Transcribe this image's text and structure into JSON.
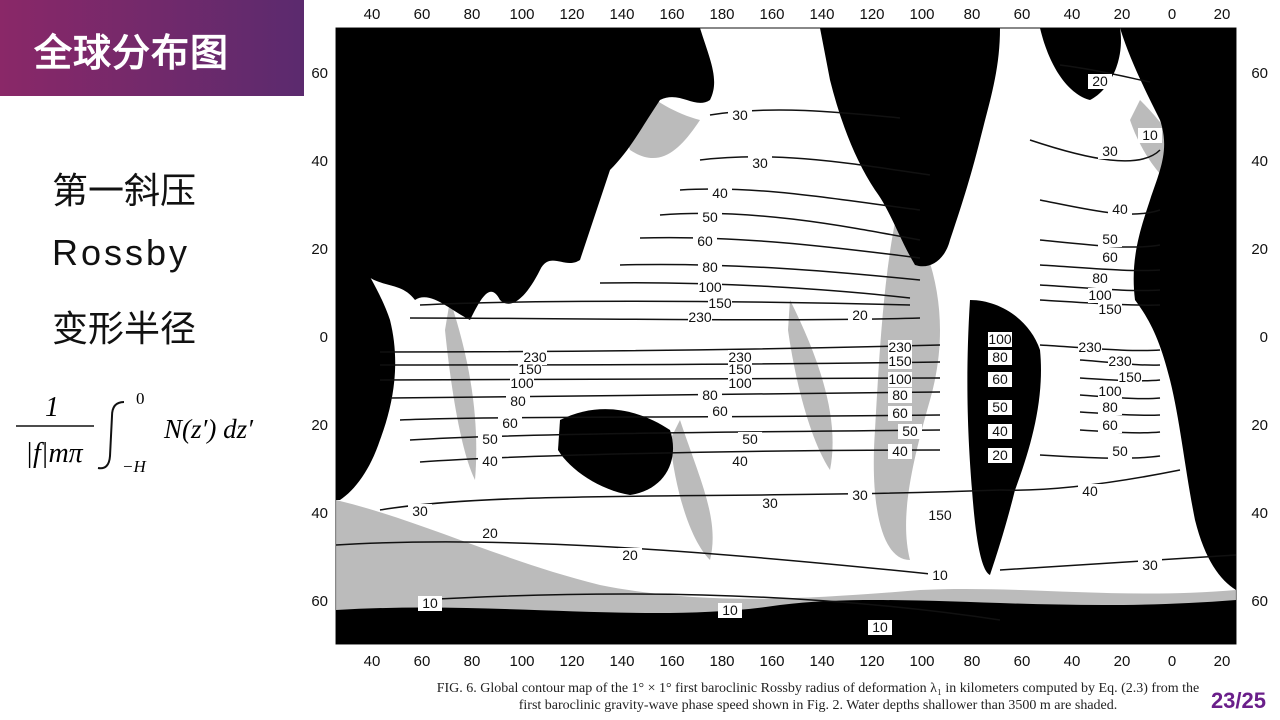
{
  "slide": {
    "title": "全球分布图",
    "page": "23/25"
  },
  "bullets": {
    "line1": "第一斜压",
    "line2": "Rossby",
    "line3": "变形半径"
  },
  "formula": {
    "numerator": "1",
    "denominator": "|f|mπ",
    "upper_limit": "0",
    "lower_limit": "−H",
    "integrand": "N(z′) dz′"
  },
  "map": {
    "top_lon_labels": [
      "40",
      "60",
      "80",
      "100",
      "120",
      "140",
      "160",
      "180",
      "160",
      "140",
      "120",
      "100",
      "80",
      "60",
      "40",
      "20",
      "0",
      "20"
    ],
    "bottom_lon_labels": [
      "40",
      "60",
      "80",
      "100",
      "120",
      "140",
      "160",
      "180",
      "160",
      "140",
      "120",
      "100",
      "80",
      "60",
      "40",
      "20",
      "0",
      "20"
    ],
    "left_lat_labels": [
      "60",
      "40",
      "20",
      "0",
      "20",
      "40",
      "60"
    ],
    "right_lat_labels": [
      "60",
      "40",
      "20",
      "0",
      "20",
      "40",
      "60"
    ],
    "contour_labels": [
      "20",
      "30",
      "40",
      "50",
      "60",
      "80",
      "100",
      "150",
      "230",
      "230",
      "150",
      "100",
      "80",
      "60",
      "50",
      "40",
      "30",
      "20",
      "10",
      "10",
      "10",
      "230",
      "150",
      "100",
      "80",
      "60",
      "50",
      "40",
      "30",
      "20",
      "10",
      "20",
      "30",
      "40",
      "50",
      "60",
      "80",
      "100",
      "150",
      "230",
      "230",
      "150",
      "100",
      "80",
      "60",
      "50",
      "40",
      "30",
      "10",
      "20",
      "230",
      "150",
      "100",
      "80",
      "60",
      "50",
      "40",
      "30",
      "20",
      "40",
      "50",
      "60",
      "80",
      "100",
      "150",
      "30"
    ]
  },
  "caption": {
    "line1": "FIG. 6. Global contour map of the 1° × 1° first baroclinic Rossby radius of deformation λ₁ in kilometers computed by Eq. (2.3) from the",
    "line2": "first baroclinic gravity-wave phase speed shown in Fig. 2. Water depths shallower than 3500 m are shaded."
  },
  "colors": {
    "banner_start": "#8a2868",
    "banner_end": "#5b2a6e",
    "page_number": "#6a1f8a",
    "land": "#000000",
    "shallow_shade": "#b4b4b4"
  }
}
